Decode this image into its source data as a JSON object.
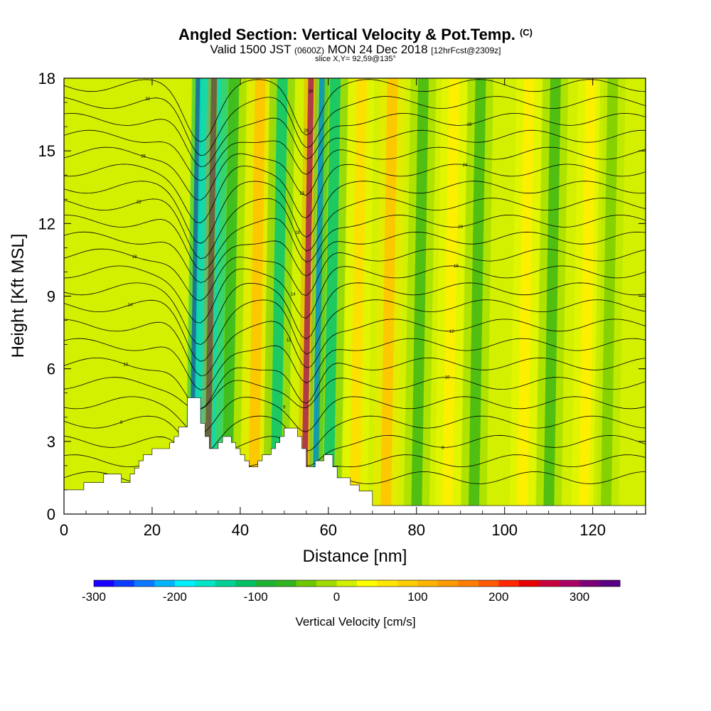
{
  "header": {
    "title": "Angled Section: Vertical Velocity & Pot.Temp.",
    "title_unit": "(C)",
    "valid_prefix": "Valid 1500 JST",
    "valid_utc": "(0600Z)",
    "valid_date": "MON 24 Dec 2018",
    "valid_fcst": "[12hrFcst@2309z]",
    "slice": "slice X,Y= 92,59@135°"
  },
  "chart_data": {
    "type": "heatmap",
    "xlabel": "Distance [nm]",
    "ylabel": "Height [Kft MSL]",
    "xlim": [
      0,
      132
    ],
    "ylim": [
      0,
      18
    ],
    "xticks": [
      0,
      20,
      40,
      60,
      80,
      100,
      120
    ],
    "yticks": [
      0,
      3,
      6,
      9,
      12,
      15,
      18
    ],
    "colorbar": {
      "label": "Vertical Velocity [cm/s]",
      "range": [
        -300,
        350
      ],
      "ticks": [
        -300,
        -200,
        -100,
        0,
        100,
        200,
        300
      ],
      "colors": [
        "#1a00ff",
        "#0a3cff",
        "#0a78ff",
        "#00b4ff",
        "#00f0ff",
        "#00e6c8",
        "#00d296",
        "#00c064",
        "#1eb432",
        "#32b41e",
        "#6ec800",
        "#a0dc00",
        "#d2f000",
        "#ffff00",
        "#ffe600",
        "#ffcd00",
        "#ffb400",
        "#ff9b00",
        "#ff7d00",
        "#ff5a00",
        "#ff2800",
        "#e60000",
        "#c8003c",
        "#aa0064",
        "#7d0078",
        "#5a0082"
      ]
    },
    "velocity_features": [
      {
        "x": 29.0,
        "velocity": -300
      },
      {
        "x": 30.5,
        "velocity": -180
      },
      {
        "x": 32.5,
        "velocity": 330
      },
      {
        "x": 34.5,
        "velocity": -200
      },
      {
        "x": 37.0,
        "velocity": -90
      },
      {
        "x": 43.0,
        "velocity": 100
      },
      {
        "x": 48.0,
        "velocity": -150
      },
      {
        "x": 54.5,
        "velocity": 300
      },
      {
        "x": 57.0,
        "velocity": -240
      },
      {
        "x": 60.0,
        "velocity": -140
      },
      {
        "x": 66.0,
        "velocity": 90
      },
      {
        "x": 73.0,
        "velocity": 110
      },
      {
        "x": 80.0,
        "velocity": -60
      },
      {
        "x": 87.0,
        "velocity": 70
      },
      {
        "x": 93.0,
        "velocity": -70
      },
      {
        "x": 104.0,
        "velocity": 60
      },
      {
        "x": 110.0,
        "velocity": -60
      },
      {
        "x": 118.0,
        "velocity": 50
      },
      {
        "x": 123.0,
        "velocity": -50
      }
    ],
    "terrain": [
      [
        0,
        1
      ],
      [
        4.5,
        1
      ],
      [
        4.5,
        1.3
      ],
      [
        9,
        1.3
      ],
      [
        9,
        1.65
      ],
      [
        13,
        1.65
      ],
      [
        13,
        1.3
      ],
      [
        15,
        1.3
      ],
      [
        15,
        1.65
      ],
      [
        16,
        1.65
      ],
      [
        16,
        1.9
      ],
      [
        17,
        1.9
      ],
      [
        17,
        2.2
      ],
      [
        18,
        2.2
      ],
      [
        18,
        2.45
      ],
      [
        20,
        2.45
      ],
      [
        20,
        2.7
      ],
      [
        24,
        2.7
      ],
      [
        24,
        2.95
      ],
      [
        25,
        2.95
      ],
      [
        25,
        3.2
      ],
      [
        26,
        3.2
      ],
      [
        26,
        3.6
      ],
      [
        28,
        3.6
      ],
      [
        28,
        4.8
      ],
      [
        31,
        4.8
      ],
      [
        31,
        3.75
      ],
      [
        32,
        3.75
      ],
      [
        32,
        3.2
      ],
      [
        33,
        3.2
      ],
      [
        33,
        2.7
      ],
      [
        35,
        2.7
      ],
      [
        35,
        2.95
      ],
      [
        36,
        2.95
      ],
      [
        36,
        3.2
      ],
      [
        38,
        3.2
      ],
      [
        38,
        2.95
      ],
      [
        39,
        2.95
      ],
      [
        39,
        2.7
      ],
      [
        40,
        2.7
      ],
      [
        40,
        2.45
      ],
      [
        41,
        2.45
      ],
      [
        41,
        2.2
      ],
      [
        42,
        2.2
      ],
      [
        42,
        1.95
      ],
      [
        44,
        1.95
      ],
      [
        44,
        2.2
      ],
      [
        45,
        2.2
      ],
      [
        45,
        2.45
      ],
      [
        47,
        2.45
      ],
      [
        47,
        2.7
      ],
      [
        48,
        2.7
      ],
      [
        48,
        2.95
      ],
      [
        49,
        2.95
      ],
      [
        49,
        3.2
      ],
      [
        50,
        3.2
      ],
      [
        50,
        3.55
      ],
      [
        53,
        3.55
      ],
      [
        53,
        3.2
      ],
      [
        54,
        3.2
      ],
      [
        54,
        2.7
      ],
      [
        55,
        2.7
      ],
      [
        55,
        1.95
      ],
      [
        57,
        1.95
      ],
      [
        57,
        2.2
      ],
      [
        59,
        2.2
      ],
      [
        59,
        2.45
      ],
      [
        61,
        2.45
      ],
      [
        61,
        1.95
      ],
      [
        62,
        1.95
      ],
      [
        62,
        1.5
      ],
      [
        65,
        1.5
      ],
      [
        65,
        1.2
      ],
      [
        67,
        1.2
      ],
      [
        67,
        0.95
      ],
      [
        70,
        0.95
      ],
      [
        70,
        0.35
      ],
      [
        132,
        0.35
      ]
    ],
    "theta_contours": [
      {
        "z0": 1.5,
        "label": "8"
      },
      {
        "z0": 2.2,
        "label": "8"
      },
      {
        "z0": 3.0,
        "label": "8"
      },
      {
        "z0": 3.8,
        "label": "9"
      },
      {
        "z0": 4.6,
        "label": "9"
      },
      {
        "z0": 5.4,
        "label": "10"
      },
      {
        "z0": 6.2,
        "label": "10"
      },
      {
        "z0": 7.0,
        "label": "12"
      },
      {
        "z0": 7.8,
        "label": "12"
      },
      {
        "z0": 8.6,
        "label": "14"
      },
      {
        "z0": 9.3,
        "label": "14"
      },
      {
        "z0": 10.0,
        "label": "16"
      },
      {
        "z0": 10.7,
        "label": "18"
      },
      {
        "z0": 11.4,
        "label": "18"
      },
      {
        "z0": 12.1,
        "label": "20"
      },
      {
        "z0": 12.8,
        "label": "22"
      },
      {
        "z0": 13.5,
        "label": "24"
      },
      {
        "z0": 14.2,
        "label": "24"
      },
      {
        "z0": 14.9,
        "label": "26"
      },
      {
        "z0": 15.6,
        "label": "28"
      },
      {
        "z0": 16.3,
        "label": "28"
      },
      {
        "z0": 17.0,
        "label": "30"
      },
      {
        "z0": 17.7,
        "label": "30"
      }
    ]
  }
}
